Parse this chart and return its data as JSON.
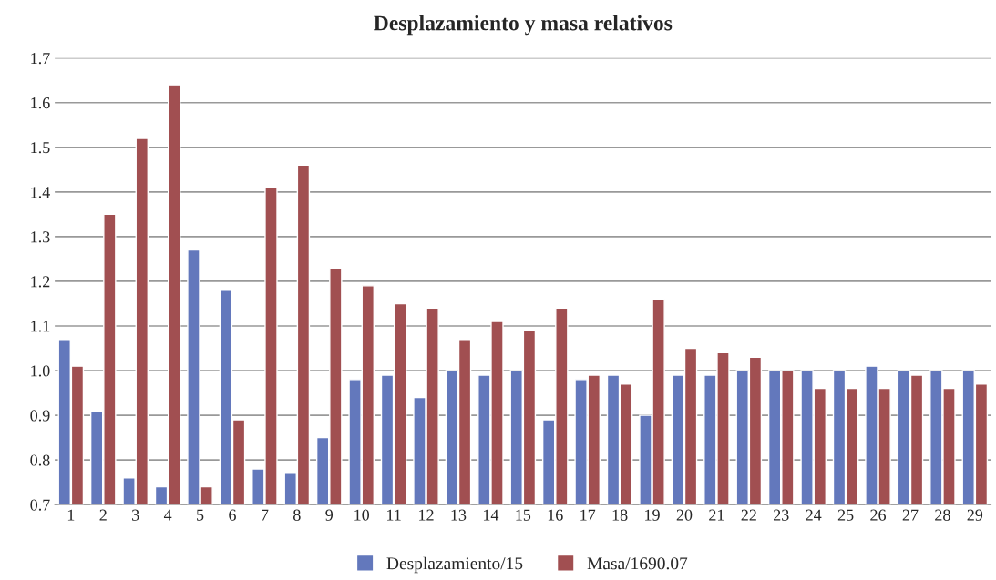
{
  "chart_data": {
    "type": "bar",
    "title": "Desplazamiento y masa relativos",
    "categories": [
      "1",
      "2",
      "3",
      "4",
      "5",
      "6",
      "7",
      "8",
      "9",
      "10",
      "11",
      "12",
      "13",
      "14",
      "15",
      "16",
      "17",
      "18",
      "19",
      "20",
      "21",
      "22",
      "23",
      "24",
      "25",
      "26",
      "27",
      "28",
      "29"
    ],
    "series": [
      {
        "name": "Desplazamiento/15",
        "color": "#6378bc",
        "values": [
          1.07,
          0.91,
          0.76,
          0.74,
          1.27,
          1.18,
          0.78,
          0.77,
          0.85,
          0.98,
          0.99,
          0.94,
          1.0,
          0.99,
          1.0,
          0.89,
          0.98,
          0.99,
          0.9,
          0.99,
          0.99,
          1.0,
          1.0,
          1.0,
          1.0,
          1.01,
          1.0,
          1.0,
          1.0
        ]
      },
      {
        "name": "Masa/1690.07",
        "color": "#a14f51",
        "values": [
          1.01,
          1.35,
          1.52,
          1.64,
          0.74,
          0.89,
          1.41,
          1.46,
          1.23,
          1.19,
          1.15,
          1.14,
          1.07,
          1.11,
          1.09,
          1.14,
          0.99,
          0.97,
          1.16,
          1.05,
          1.04,
          1.03,
          1.0,
          0.96,
          0.96,
          0.96,
          0.99,
          0.96,
          0.97
        ]
      }
    ],
    "ylim": [
      0.7,
      1.7
    ],
    "yticks": [
      {
        "value": 0.7,
        "label": "0.7"
      },
      {
        "value": 0.8,
        "label": "0.8"
      },
      {
        "value": 0.9,
        "label": "0.9"
      },
      {
        "value": 1.0,
        "label": "1.0"
      },
      {
        "value": 1.1,
        "label": "1.1"
      },
      {
        "value": 1.2,
        "label": "1.2"
      },
      {
        "value": 1.3,
        "label": "1.3"
      },
      {
        "value": 1.4,
        "label": "1.4"
      },
      {
        "value": 1.5,
        "label": "1.5"
      },
      {
        "value": 1.6,
        "label": "1.6"
      },
      {
        "value": 1.7,
        "label": "1.7"
      }
    ],
    "grid": "y",
    "legend": "bottom"
  }
}
